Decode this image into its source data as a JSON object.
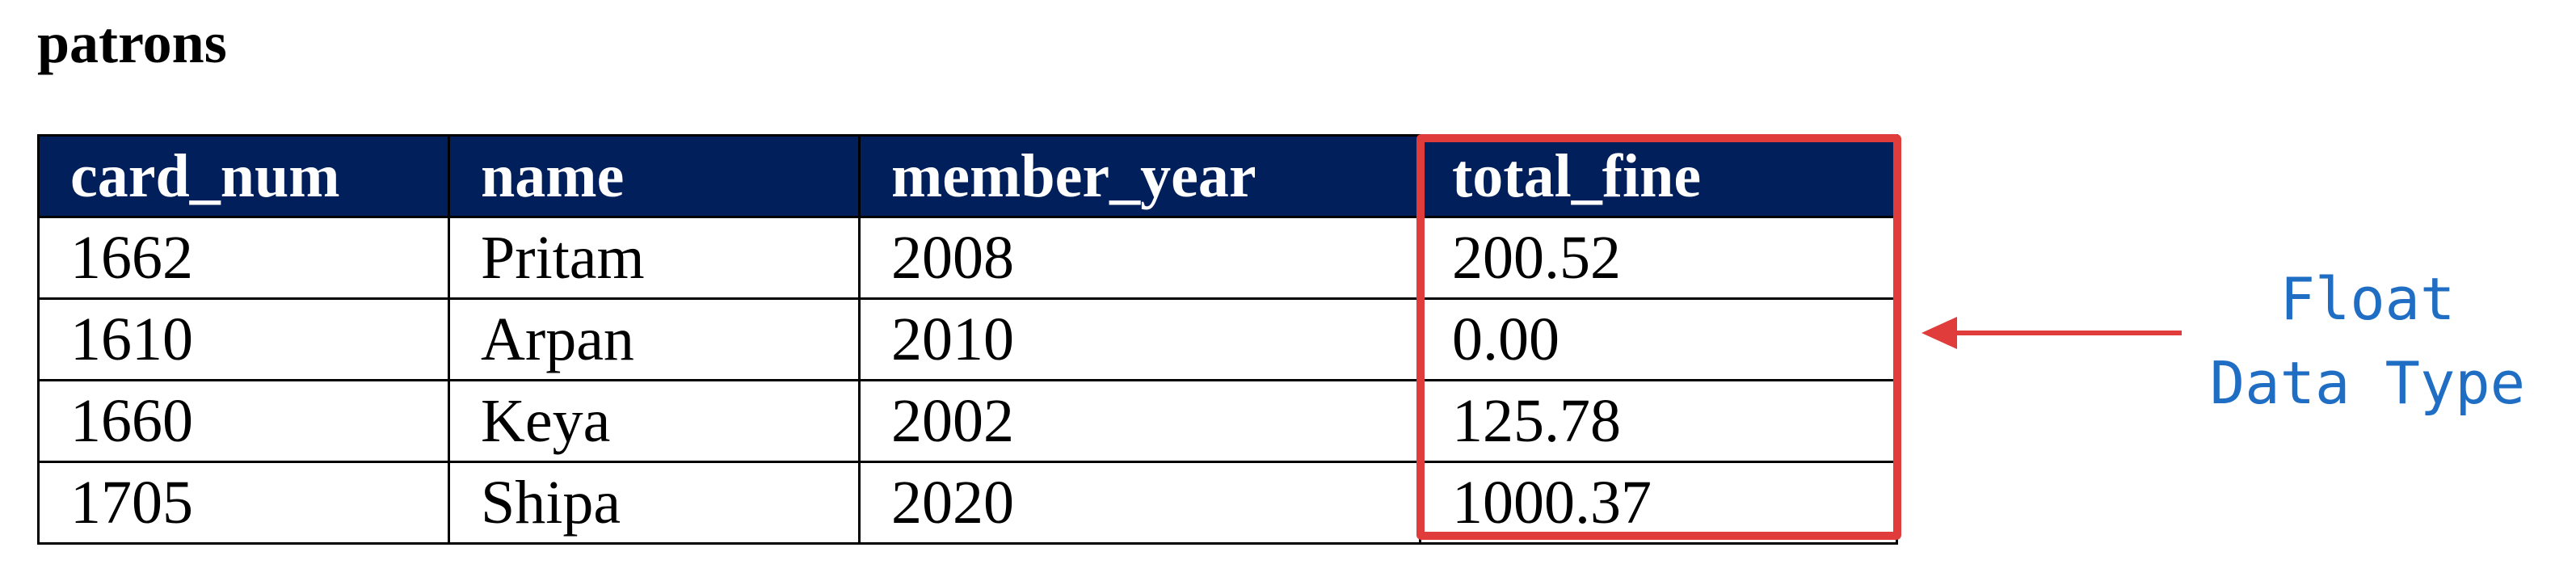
{
  "title": "patrons",
  "columns": [
    "card_num",
    "name",
    "member_year",
    "total_fine"
  ],
  "rows": [
    [
      "1662",
      "Pritam",
      "2008",
      "200.52"
    ],
    [
      "1610",
      "Arpan",
      "2010",
      "0.00"
    ],
    [
      "1660",
      "Keya",
      "2002",
      "125.78"
    ],
    [
      "1705",
      "Shipa",
      "2020",
      "1000.37"
    ]
  ],
  "annotation": {
    "line1": "Float",
    "line2": "Data Type"
  },
  "colors": {
    "header_bg": "#001f5b",
    "highlight": "#e03c3c",
    "annotation_text": "#1f6ec4"
  },
  "icons": {
    "arrow": "arrow-left-icon"
  }
}
